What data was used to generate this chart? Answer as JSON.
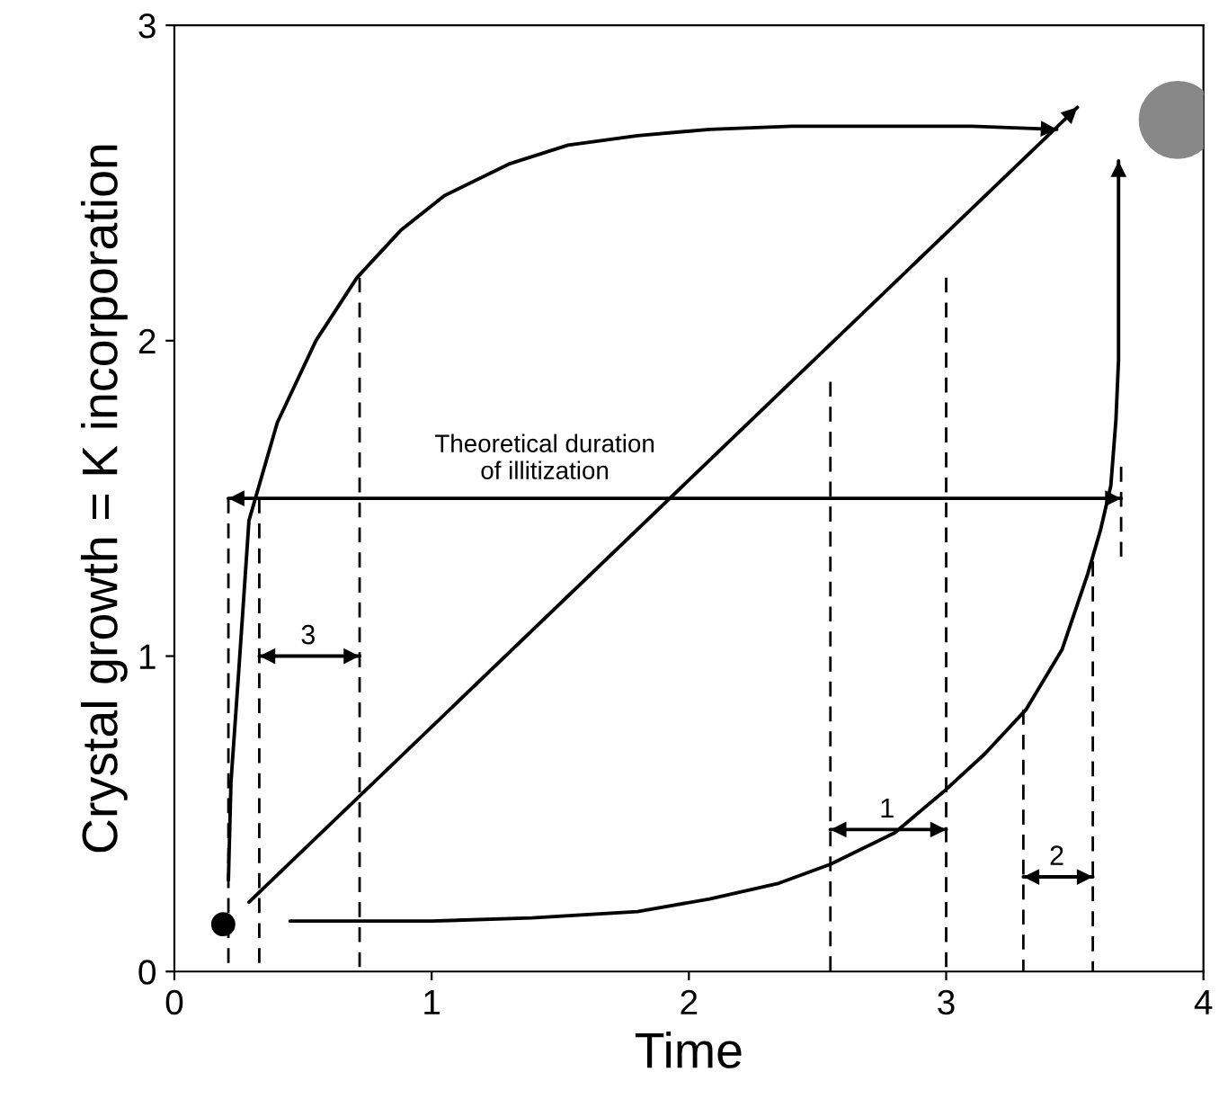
{
  "chart_data": {
    "type": "line",
    "xlabel": "Time",
    "ylabel": "Crystal growth = K incorporation",
    "xlim": [
      0,
      4
    ],
    "ylim": [
      0,
      3
    ],
    "xticks": [
      0,
      1,
      2,
      3,
      4
    ],
    "yticks": [
      0,
      1,
      2,
      3
    ],
    "grid": false,
    "legend": false,
    "marker": "none",
    "series": [
      {
        "color": "#000000",
        "x": [
          0.29,
          3.51
        ],
        "values": [
          0.22,
          2.74
        ]
      },
      {
        "color": "#000000",
        "x": [
          0.21,
          0.22,
          0.25,
          0.29,
          0.4,
          0.55,
          0.71,
          0.88,
          1.05,
          1.3,
          1.53,
          1.8,
          2.08,
          2.4,
          2.76,
          3.1,
          3.43
        ],
        "values": [
          0.29,
          0.6,
          0.95,
          1.43,
          1.74,
          2.0,
          2.2,
          2.35,
          2.46,
          2.56,
          2.62,
          2.65,
          2.67,
          2.68,
          2.68,
          2.68,
          2.67
        ]
      },
      {
        "color": "#000000",
        "x": [
          0.45,
          1.0,
          1.39,
          1.8,
          2.08,
          2.35,
          2.55,
          2.8,
          2.99,
          3.15,
          3.31,
          3.45,
          3.55,
          3.6,
          3.64,
          3.66,
          3.67,
          3.67
        ],
        "values": [
          0.16,
          0.16,
          0.17,
          0.19,
          0.23,
          0.28,
          0.34,
          0.44,
          0.57,
          0.69,
          0.83,
          1.02,
          1.26,
          1.4,
          1.54,
          1.75,
          1.94,
          2.57
        ]
      },
      {
        "color": "#000000",
        "x": [
          0.21,
          3.68
        ],
        "values": [
          1.5,
          1.5
        ]
      },
      {
        "color": "#000000",
        "x": [
          0.33,
          0.72
        ],
        "values": [
          1.0,
          1.0
        ]
      },
      {
        "color": "#000000",
        "x": [
          2.55,
          3.0
        ],
        "values": [
          0.45,
          0.45
        ]
      },
      {
        "color": "#000000",
        "x": [
          3.3,
          3.57
        ],
        "values": [
          0.3,
          0.3
        ]
      },
      {
        "color": "#000000",
        "line_style": "dashed",
        "x": [
          0.21,
          0.21
        ],
        "values": [
          1.5,
          0.0
        ]
      },
      {
        "color": "#000000",
        "line_style": "dashed",
        "x": [
          0.33,
          0.33
        ],
        "values": [
          1.5,
          0.0
        ]
      },
      {
        "color": "#000000",
        "line_style": "dashed",
        "x": [
          0.72,
          0.72
        ],
        "values": [
          2.2,
          0.0
        ]
      },
      {
        "color": "#000000",
        "line_style": "dashed",
        "x": [
          2.55,
          2.55
        ],
        "values": [
          1.87,
          0.0
        ]
      },
      {
        "color": "#000000",
        "line_style": "dashed",
        "x": [
          3.0,
          3.0
        ],
        "values": [
          2.2,
          0.0
        ]
      },
      {
        "color": "#000000",
        "line_style": "dashed",
        "x": [
          3.3,
          3.3
        ],
        "values": [
          0.83,
          0.0
        ]
      },
      {
        "color": "#000000",
        "line_style": "dashed",
        "x": [
          3.57,
          3.57
        ],
        "values": [
          1.3,
          0.0
        ]
      },
      {
        "color": "#000000",
        "line_style": "dashed",
        "x": [
          3.68,
          3.68
        ],
        "values": [
          1.6,
          1.3
        ]
      },
      {
        "type": "scatter",
        "color": "#000000",
        "marker": "circle",
        "x": [
          0.19
        ],
        "values": [
          0.15
        ],
        "sizes": [
          0.08
        ]
      },
      {
        "type": "scatter",
        "color": "#888888",
        "marker": "circle",
        "x": [
          3.9
        ],
        "values": [
          2.7
        ],
        "sizes": [
          1
        ]
      }
    ],
    "annotations": [
      "Theoretical duration\nof illitization",
      {
        "text": "3",
        "x": 0.52,
        "y": 1.02
      },
      {
        "text": "1",
        "x": 2.77,
        "y": 0.47
      },
      {
        "text": "2",
        "x": 3.43,
        "y": 0.32
      }
    ]
  }
}
